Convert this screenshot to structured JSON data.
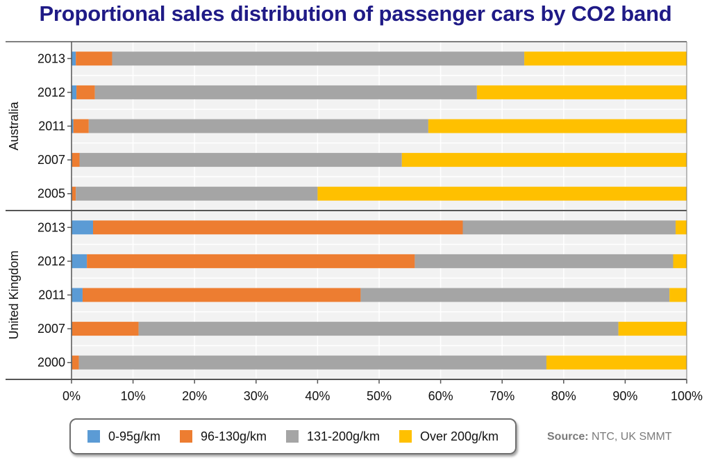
{
  "title": "Proportional sales distribution of passenger cars by CO2 band",
  "source": {
    "label": "Source:",
    "text": "NTC, UK SMMT"
  },
  "colors": {
    "band1": "#5b9bd5",
    "band2": "#ed7d31",
    "band3": "#a5a5a5",
    "band4": "#ffc000"
  },
  "chart_data": {
    "type": "bar",
    "orientation": "horizontal",
    "stacked": true,
    "groups": [
      {
        "name": "Australia",
        "categories": [
          "2013",
          "2012",
          "2011",
          "2007",
          "2005"
        ],
        "series": [
          {
            "name": "0-95g/km",
            "values": [
              0.7,
              0.8,
              0.3,
              0.1,
              0.1
            ]
          },
          {
            "name": "96-130g/km",
            "values": [
              5.9,
              3.0,
              2.5,
              1.2,
              0.6
            ]
          },
          {
            "name": "131-200g/km",
            "values": [
              67.0,
              62.1,
              55.2,
              52.4,
              39.3
            ]
          },
          {
            "name": "Over 200g/km",
            "values": [
              26.4,
              34.1,
              42.0,
              46.3,
              60.0
            ]
          }
        ]
      },
      {
        "name": "United Kingdom",
        "categories": [
          "2013",
          "2012",
          "2011",
          "2007",
          "2000"
        ],
        "series": [
          {
            "name": "0-95g/km",
            "values": [
              3.5,
              2.5,
              1.8,
              0.1,
              0.1
            ]
          },
          {
            "name": "96-130g/km",
            "values": [
              60.1,
              53.3,
              45.2,
              10.8,
              1.1
            ]
          },
          {
            "name": "131-200g/km",
            "values": [
              34.6,
              42.0,
              50.2,
              78.0,
              76.0
            ]
          },
          {
            "name": "Over 200g/km",
            "values": [
              1.8,
              2.2,
              2.8,
              11.1,
              22.8
            ]
          }
        ]
      }
    ],
    "x_ticks": [
      "0%",
      "10%",
      "20%",
      "30%",
      "40%",
      "50%",
      "60%",
      "70%",
      "80%",
      "90%",
      "100%"
    ],
    "xlim": [
      0,
      100
    ],
    "grid": true,
    "legend_position": "bottom",
    "legend": [
      "0-95g/km",
      "96-130g/km",
      "131-200g/km",
      "Over 200g/km"
    ]
  }
}
